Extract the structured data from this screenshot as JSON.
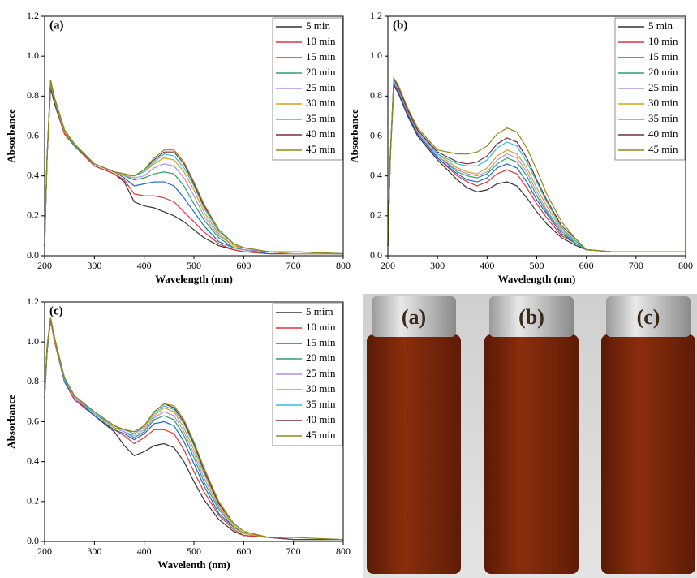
{
  "chart_data": [
    {
      "type": "line",
      "label": "(a)",
      "xlabel": "Wavelength (nm)",
      "ylabel": "Absorbance",
      "legend": "upper right",
      "xlim": [
        200,
        800
      ],
      "ylim": [
        0,
        1.2
      ],
      "xticks": [
        200,
        300,
        400,
        500,
        600,
        700,
        800
      ],
      "yticks": [
        {
          "value": 0,
          "label": "0.0"
        },
        {
          "value": 0.2,
          "label": "0.2"
        },
        {
          "value": 0.4,
          "label": "0.4"
        },
        {
          "value": 0.6,
          "label": "0.6"
        },
        {
          "value": 0.8,
          "label": "0.8"
        },
        {
          "value": 1,
          "label": "1.0"
        },
        {
          "value": 1.2,
          "label": "1.2"
        }
      ],
      "x": [
        200,
        205,
        212,
        220,
        240,
        260,
        300,
        340,
        360,
        380,
        400,
        420,
        440,
        460,
        480,
        500,
        520,
        550,
        580,
        600,
        650,
        700,
        800
      ],
      "series": [
        {
          "name": "5 min",
          "color": "#333333",
          "values": [
            0.05,
            0.5,
            0.84,
            0.76,
            0.61,
            0.55,
            0.45,
            0.41,
            0.37,
            0.27,
            0.25,
            0.24,
            0.22,
            0.2,
            0.17,
            0.13,
            0.09,
            0.05,
            0.03,
            0.02,
            0.01,
            0.01,
            0.01
          ]
        },
        {
          "name": "10 min",
          "color": "#e0353a",
          "values": [
            0.05,
            0.5,
            0.85,
            0.77,
            0.61,
            0.55,
            0.45,
            0.41,
            0.38,
            0.31,
            0.3,
            0.3,
            0.29,
            0.27,
            0.22,
            0.17,
            0.12,
            0.06,
            0.03,
            0.02,
            0.01,
            0.01,
            0.01
          ]
        },
        {
          "name": "15 min",
          "color": "#1f66c9",
          "values": [
            0.05,
            0.5,
            0.86,
            0.77,
            0.62,
            0.55,
            0.46,
            0.42,
            0.39,
            0.35,
            0.36,
            0.37,
            0.37,
            0.35,
            0.29,
            0.22,
            0.15,
            0.07,
            0.04,
            0.03,
            0.01,
            0.01,
            0.01
          ]
        },
        {
          "name": "20 min",
          "color": "#2e9e6b",
          "values": [
            0.05,
            0.5,
            0.86,
            0.78,
            0.62,
            0.55,
            0.46,
            0.42,
            0.4,
            0.38,
            0.39,
            0.41,
            0.42,
            0.41,
            0.35,
            0.26,
            0.18,
            0.09,
            0.04,
            0.03,
            0.02,
            0.01,
            0.01
          ]
        },
        {
          "name": "25 min",
          "color": "#b28fe0",
          "values": [
            0.05,
            0.5,
            0.87,
            0.78,
            0.62,
            0.56,
            0.46,
            0.42,
            0.4,
            0.39,
            0.4,
            0.44,
            0.46,
            0.45,
            0.39,
            0.3,
            0.2,
            0.1,
            0.05,
            0.03,
            0.02,
            0.01,
            0.01
          ]
        },
        {
          "name": "30 min",
          "color": "#d4a017",
          "values": [
            0.05,
            0.5,
            0.87,
            0.78,
            0.62,
            0.56,
            0.46,
            0.42,
            0.4,
            0.4,
            0.42,
            0.46,
            0.49,
            0.48,
            0.42,
            0.33,
            0.22,
            0.11,
            0.05,
            0.04,
            0.02,
            0.01,
            0.01
          ]
        },
        {
          "name": "35 min",
          "color": "#2bc0d6",
          "values": [
            0.05,
            0.5,
            0.88,
            0.79,
            0.63,
            0.56,
            0.46,
            0.42,
            0.41,
            0.4,
            0.42,
            0.47,
            0.51,
            0.5,
            0.44,
            0.35,
            0.24,
            0.12,
            0.06,
            0.04,
            0.02,
            0.02,
            0.01
          ]
        },
        {
          "name": "40 min",
          "color": "#7a2b3a",
          "values": [
            0.05,
            0.5,
            0.88,
            0.79,
            0.63,
            0.56,
            0.46,
            0.42,
            0.41,
            0.4,
            0.43,
            0.48,
            0.52,
            0.52,
            0.46,
            0.36,
            0.25,
            0.13,
            0.06,
            0.04,
            0.02,
            0.02,
            0.01
          ]
        },
        {
          "name": "45 min",
          "color": "#8c8c1a",
          "values": [
            0.05,
            0.5,
            0.88,
            0.79,
            0.63,
            0.56,
            0.46,
            0.42,
            0.41,
            0.4,
            0.43,
            0.49,
            0.53,
            0.53,
            0.47,
            0.37,
            0.26,
            0.13,
            0.06,
            0.04,
            0.02,
            0.02,
            0.01
          ]
        }
      ]
    },
    {
      "type": "line",
      "label": "(b)",
      "xlabel": "Wavelength (nm)",
      "ylabel": "Absorbance",
      "legend": "upper right",
      "xlim": [
        200,
        800
      ],
      "ylim": [
        0,
        1.2
      ],
      "xticks": [
        200,
        300,
        400,
        500,
        600,
        700,
        800
      ],
      "yticks": [
        {
          "value": 0,
          "label": "0.0"
        },
        {
          "value": 0.2,
          "label": "0.2"
        },
        {
          "value": 0.4,
          "label": "0.4"
        },
        {
          "value": 0.6,
          "label": "0.6"
        },
        {
          "value": 0.8,
          "label": "0.8"
        },
        {
          "value": 1,
          "label": "1.0"
        },
        {
          "value": 1.2,
          "label": "1.2"
        }
      ],
      "x": [
        200,
        205,
        212,
        220,
        240,
        260,
        300,
        340,
        360,
        380,
        400,
        420,
        440,
        460,
        480,
        500,
        520,
        550,
        580,
        600,
        650,
        700,
        800
      ],
      "series": [
        {
          "name": "5 min",
          "color": "#333333",
          "values": [
            0.05,
            0.5,
            0.85,
            0.82,
            0.7,
            0.6,
            0.48,
            0.38,
            0.34,
            0.32,
            0.33,
            0.36,
            0.37,
            0.35,
            0.29,
            0.22,
            0.16,
            0.09,
            0.05,
            0.03,
            0.02,
            0.02,
            0.02
          ]
        },
        {
          "name": "10 min",
          "color": "#e0353a",
          "values": [
            0.05,
            0.5,
            0.86,
            0.83,
            0.71,
            0.61,
            0.49,
            0.4,
            0.37,
            0.35,
            0.37,
            0.41,
            0.43,
            0.41,
            0.34,
            0.26,
            0.19,
            0.1,
            0.06,
            0.03,
            0.02,
            0.02,
            0.02
          ]
        },
        {
          "name": "15 min",
          "color": "#1f66c9",
          "values": [
            0.05,
            0.5,
            0.86,
            0.83,
            0.71,
            0.61,
            0.49,
            0.41,
            0.38,
            0.37,
            0.39,
            0.44,
            0.46,
            0.44,
            0.37,
            0.28,
            0.21,
            0.11,
            0.06,
            0.03,
            0.02,
            0.02,
            0.02
          ]
        },
        {
          "name": "20 min",
          "color": "#2e9e6b",
          "values": [
            0.05,
            0.5,
            0.87,
            0.84,
            0.72,
            0.62,
            0.5,
            0.42,
            0.4,
            0.39,
            0.41,
            0.46,
            0.49,
            0.47,
            0.4,
            0.3,
            0.22,
            0.12,
            0.06,
            0.03,
            0.02,
            0.02,
            0.02
          ]
        },
        {
          "name": "25 min",
          "color": "#b28fe0",
          "values": [
            0.05,
            0.5,
            0.87,
            0.84,
            0.72,
            0.62,
            0.5,
            0.43,
            0.41,
            0.4,
            0.42,
            0.48,
            0.51,
            0.49,
            0.42,
            0.32,
            0.23,
            0.12,
            0.07,
            0.03,
            0.02,
            0.02,
            0.02
          ]
        },
        {
          "name": "30 min",
          "color": "#d4a017",
          "values": [
            0.05,
            0.5,
            0.88,
            0.85,
            0.73,
            0.63,
            0.51,
            0.44,
            0.42,
            0.41,
            0.44,
            0.5,
            0.53,
            0.51,
            0.44,
            0.34,
            0.25,
            0.13,
            0.07,
            0.03,
            0.02,
            0.02,
            0.02
          ]
        },
        {
          "name": "35 min",
          "color": "#2bc0d6",
          "values": [
            0.05,
            0.5,
            0.88,
            0.85,
            0.73,
            0.63,
            0.51,
            0.46,
            0.45,
            0.45,
            0.48,
            0.54,
            0.57,
            0.55,
            0.47,
            0.37,
            0.27,
            0.14,
            0.07,
            0.03,
            0.02,
            0.02,
            0.02
          ]
        },
        {
          "name": "40 min",
          "color": "#7a2b3a",
          "values": [
            0.05,
            0.5,
            0.89,
            0.85,
            0.73,
            0.63,
            0.52,
            0.47,
            0.46,
            0.47,
            0.5,
            0.56,
            0.59,
            0.57,
            0.49,
            0.38,
            0.28,
            0.15,
            0.08,
            0.03,
            0.02,
            0.02,
            0.02
          ]
        },
        {
          "name": "45 min",
          "color": "#8c8c1a",
          "values": [
            0.05,
            0.5,
            0.89,
            0.86,
            0.74,
            0.64,
            0.53,
            0.51,
            0.51,
            0.52,
            0.55,
            0.61,
            0.64,
            0.62,
            0.54,
            0.43,
            0.31,
            0.17,
            0.08,
            0.03,
            0.02,
            0.02,
            0.02
          ]
        }
      ]
    },
    {
      "type": "line",
      "label": "(c)",
      "xlabel": "Wavelenth (nm)",
      "ylabel": "Absorbance",
      "legend": "upper right",
      "xlim": [
        200,
        800
      ],
      "ylim": [
        0,
        1.2
      ],
      "xticks": [
        200,
        300,
        400,
        500,
        600,
        700,
        800
      ],
      "yticks": [
        {
          "value": 0,
          "label": "0.0"
        },
        {
          "value": 0.2,
          "label": "0.2"
        },
        {
          "value": 0.4,
          "label": "0.4"
        },
        {
          "value": 0.6,
          "label": "0.6"
        },
        {
          "value": 0.8,
          "label": "0.8"
        },
        {
          "value": 1,
          "label": "1.0"
        },
        {
          "value": 1.2,
          "label": "1.2"
        }
      ],
      "x": [
        200,
        205,
        212,
        220,
        240,
        260,
        300,
        340,
        360,
        380,
        400,
        420,
        440,
        460,
        480,
        500,
        520,
        550,
        580,
        600,
        650,
        700,
        800
      ],
      "series": [
        {
          "name": "5 mim",
          "color": "#333333",
          "values": [
            0.72,
            0.95,
            1.11,
            1.0,
            0.8,
            0.71,
            0.63,
            0.55,
            0.48,
            0.43,
            0.45,
            0.48,
            0.49,
            0.47,
            0.4,
            0.3,
            0.21,
            0.11,
            0.05,
            0.03,
            0.02,
            0.01,
            0.01
          ]
        },
        {
          "name": "10 min",
          "color": "#e0353a",
          "values": [
            0.72,
            0.96,
            1.11,
            1.0,
            0.8,
            0.71,
            0.63,
            0.56,
            0.53,
            0.49,
            0.52,
            0.56,
            0.56,
            0.54,
            0.46,
            0.35,
            0.25,
            0.13,
            0.06,
            0.03,
            0.02,
            0.01,
            0.01
          ]
        },
        {
          "name": "15 min",
          "color": "#1f66c9",
          "values": [
            0.72,
            0.96,
            1.12,
            1.01,
            0.8,
            0.72,
            0.63,
            0.56,
            0.54,
            0.51,
            0.54,
            0.59,
            0.6,
            0.58,
            0.5,
            0.39,
            0.28,
            0.14,
            0.07,
            0.04,
            0.02,
            0.01,
            0.01
          ]
        },
        {
          "name": "20 min",
          "color": "#2e9e6b",
          "values": [
            0.72,
            0.97,
            1.12,
            1.01,
            0.81,
            0.72,
            0.64,
            0.57,
            0.55,
            0.52,
            0.55,
            0.61,
            0.63,
            0.61,
            0.53,
            0.42,
            0.3,
            0.16,
            0.07,
            0.04,
            0.02,
            0.01,
            0.01
          ]
        },
        {
          "name": "25 min",
          "color": "#b28fe0",
          "values": [
            0.72,
            0.97,
            1.12,
            1.01,
            0.81,
            0.72,
            0.64,
            0.57,
            0.55,
            0.53,
            0.56,
            0.62,
            0.65,
            0.63,
            0.55,
            0.44,
            0.32,
            0.17,
            0.08,
            0.04,
            0.02,
            0.01,
            0.01
          ]
        },
        {
          "name": "30 min",
          "color": "#d4a017",
          "values": [
            0.72,
            0.97,
            1.12,
            1.01,
            0.81,
            0.73,
            0.64,
            0.57,
            0.56,
            0.54,
            0.57,
            0.63,
            0.67,
            0.65,
            0.57,
            0.46,
            0.34,
            0.18,
            0.08,
            0.04,
            0.02,
            0.01,
            0.01
          ]
        },
        {
          "name": "35 min",
          "color": "#2bc0d6",
          "values": [
            0.72,
            0.97,
            1.12,
            1.02,
            0.81,
            0.73,
            0.64,
            0.58,
            0.56,
            0.54,
            0.58,
            0.64,
            0.68,
            0.66,
            0.59,
            0.48,
            0.35,
            0.19,
            0.09,
            0.05,
            0.02,
            0.01,
            0.01
          ]
        },
        {
          "name": "40 min",
          "color": "#7a2b3a",
          "values": [
            0.72,
            0.98,
            1.12,
            1.02,
            0.82,
            0.73,
            0.65,
            0.58,
            0.56,
            0.55,
            0.58,
            0.65,
            0.69,
            0.67,
            0.6,
            0.49,
            0.36,
            0.19,
            0.09,
            0.05,
            0.02,
            0.01,
            0.01
          ]
        },
        {
          "name": "45 min",
          "color": "#8c8c1a",
          "values": [
            0.72,
            0.98,
            1.12,
            1.02,
            0.82,
            0.73,
            0.65,
            0.58,
            0.56,
            0.55,
            0.58,
            0.65,
            0.69,
            0.68,
            0.61,
            0.5,
            0.37,
            0.2,
            0.09,
            0.05,
            0.02,
            0.02,
            0.01
          ]
        }
      ]
    }
  ],
  "photo": {
    "labels": [
      "(a)",
      "(b)",
      "(c)"
    ]
  }
}
